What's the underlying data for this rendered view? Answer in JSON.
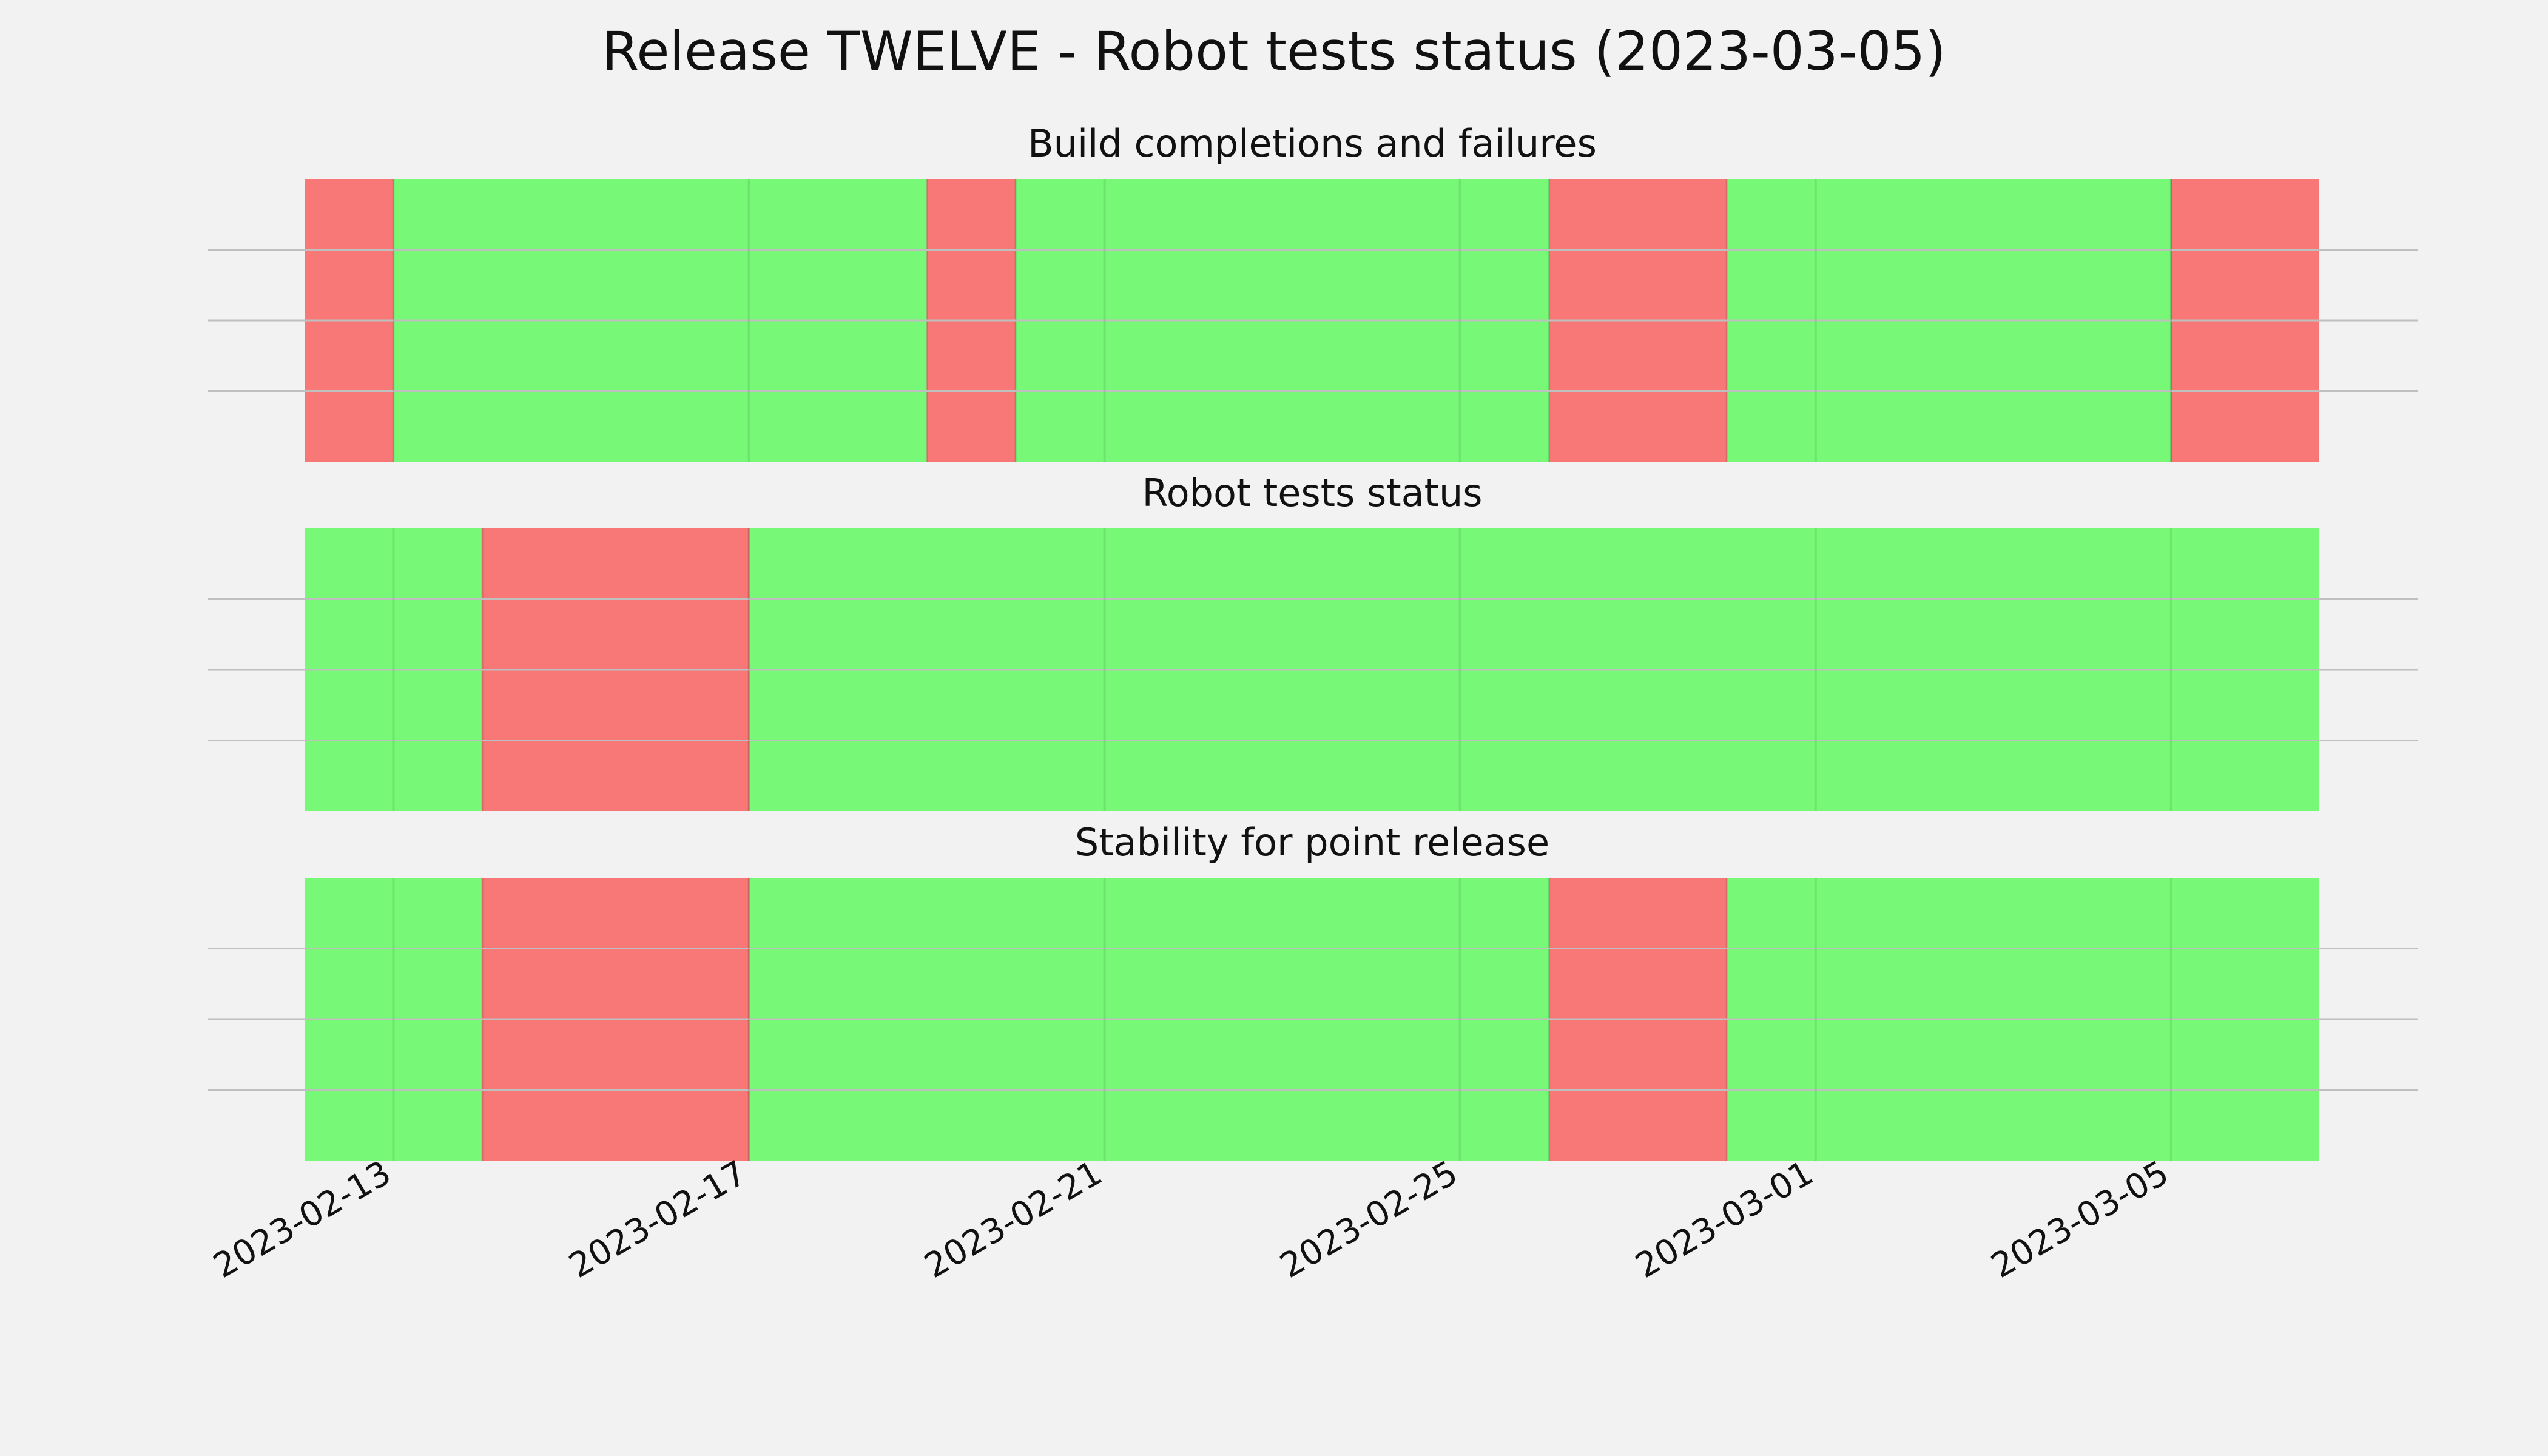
{
  "chart_data": {
    "type": "timeline",
    "title": "Release TWELVE - Robot tests status (2023-03-05)",
    "x_range": [
      "2023-02-12",
      "2023-03-06T16:00"
    ],
    "x_ticks": [
      "2023-02-13",
      "2023-02-17",
      "2023-02-21",
      "2023-02-25",
      "2023-03-01",
      "2023-03-05"
    ],
    "grid": true,
    "status_colors": {
      "fail": "#f87777",
      "pass": "#77f877"
    },
    "panels": [
      {
        "title": "Build completions and failures",
        "segments": [
          {
            "start": "2023-02-12T00:00",
            "end": "2023-02-13T00:00",
            "status": "fail"
          },
          {
            "start": "2023-02-13T00:00",
            "end": "2023-02-19T00:00",
            "status": "pass"
          },
          {
            "start": "2023-02-19T00:00",
            "end": "2023-02-20T00:00",
            "status": "fail"
          },
          {
            "start": "2023-02-20T00:00",
            "end": "2023-02-26T00:00",
            "status": "pass"
          },
          {
            "start": "2023-02-26T00:00",
            "end": "2023-02-28T00:00",
            "status": "fail"
          },
          {
            "start": "2023-02-28T00:00",
            "end": "2023-03-05T00:00",
            "status": "pass"
          },
          {
            "start": "2023-03-05T00:00",
            "end": "2023-03-06T16:00",
            "status": "fail"
          }
        ]
      },
      {
        "title": "Robot tests status",
        "segments": [
          {
            "start": "2023-02-12T00:00",
            "end": "2023-02-14T00:00",
            "status": "pass"
          },
          {
            "start": "2023-02-14T00:00",
            "end": "2023-02-17T00:00",
            "status": "fail"
          },
          {
            "start": "2023-02-17T00:00",
            "end": "2023-03-06T16:00",
            "status": "pass"
          }
        ]
      },
      {
        "title": "Stability for point release",
        "segments": [
          {
            "start": "2023-02-12T00:00",
            "end": "2023-02-14T00:00",
            "status": "pass"
          },
          {
            "start": "2023-02-14T00:00",
            "end": "2023-02-17T00:00",
            "status": "fail"
          },
          {
            "start": "2023-02-17T00:00",
            "end": "2023-02-26T00:00",
            "status": "pass"
          },
          {
            "start": "2023-02-26T00:00",
            "end": "2023-02-28T00:00",
            "status": "fail"
          },
          {
            "start": "2023-02-28T00:00",
            "end": "2023-03-06T16:00",
            "status": "pass"
          }
        ]
      }
    ]
  }
}
